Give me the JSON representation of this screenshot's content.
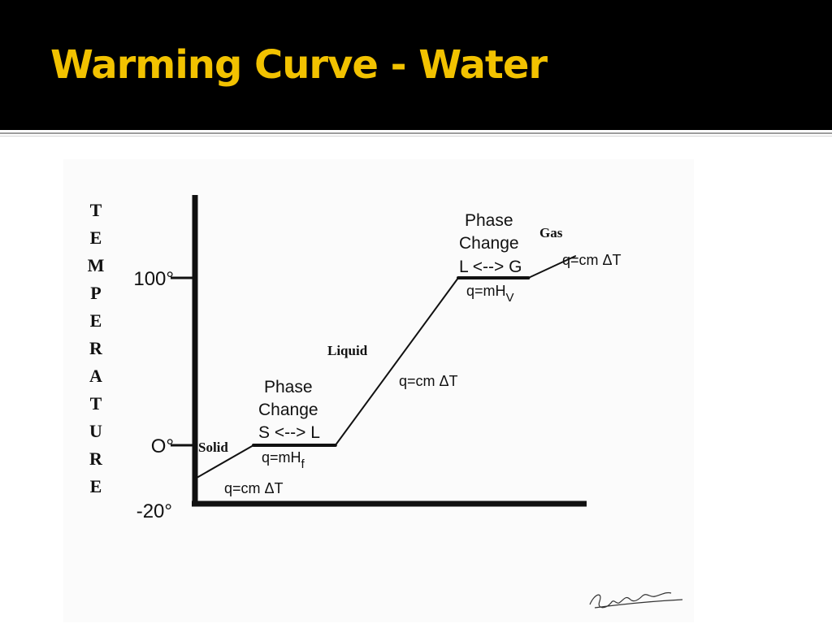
{
  "slide": {
    "title": "Warming Curve - Water"
  },
  "colors": {
    "title_bar": "#000000",
    "title_text": "#f2c200",
    "chart_ink": "#111111"
  },
  "chart_data": {
    "type": "line",
    "title": "",
    "ylabel": "TEMPERATURE",
    "xlabel": "",
    "y_ticks": [
      {
        "value": 100,
        "label": "100°"
      },
      {
        "value": 0,
        "label": "O°"
      },
      {
        "value": -20,
        "label": "-20°"
      }
    ],
    "series": [
      {
        "name": "",
        "points": [
          {
            "x": 0,
            "y": -20
          },
          {
            "x": 1,
            "y": 0
          },
          {
            "x": 2.4,
            "y": 0
          },
          {
            "x": 4.5,
            "y": 100
          },
          {
            "x": 5.7,
            "y": 100
          },
          {
            "x": 6.5,
            "y": 113
          }
        ]
      }
    ],
    "annotations": {
      "solid": "Solid",
      "solid_eq": "q=cm ΔT",
      "fusion_l1": "Phase",
      "fusion_l2": "Change",
      "fusion_l3": "S <--> L",
      "fusion_eq": "q=mH",
      "fusion_sub": "f",
      "liquid": "Liquid",
      "liquid_eq": "q=cm ΔT",
      "vap_l1": "Phase",
      "vap_l2": "Change",
      "vap_l3": "L <--> G",
      "vap_eq": "q=mH",
      "vap_sub": "V",
      "gas": "Gas",
      "gas_eq": "q=cm ΔT"
    },
    "signature": "Steven Wagner"
  }
}
